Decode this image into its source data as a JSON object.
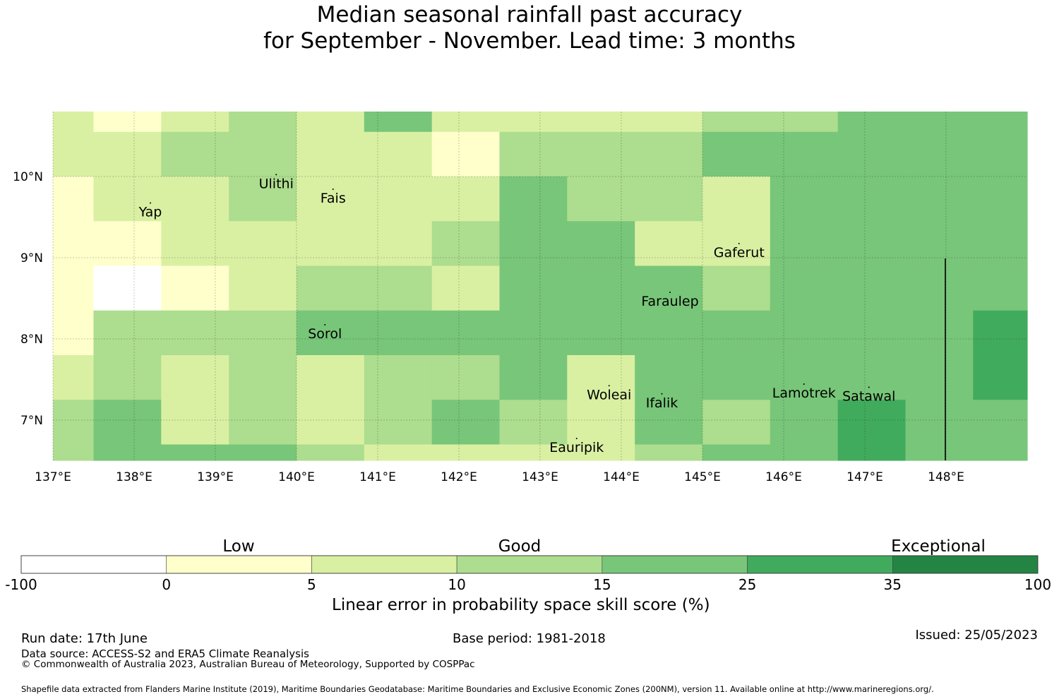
{
  "title": {
    "line1": "Median seasonal rainfall past accuracy",
    "line2": "for September - November. Lead time: 3 months"
  },
  "map": {
    "lon_ticks": [
      "137°E",
      "138°E",
      "139°E",
      "140°E",
      "141°E",
      "142°E",
      "143°E",
      "144°E",
      "145°E",
      "146°E",
      "147°E",
      "148°E"
    ],
    "lat_ticks": [
      "10°N",
      "9°N",
      "8°N",
      "7°N"
    ],
    "lon_range": [
      137,
      149
    ],
    "lat_range": [
      6.5,
      10.8
    ],
    "places": [
      {
        "name": "Yap",
        "lon": 138.2,
        "lat": 9.5
      },
      {
        "name": "Ulithi",
        "lon": 139.75,
        "lat": 9.85
      },
      {
        "name": "Fais",
        "lon": 140.45,
        "lat": 9.67
      },
      {
        "name": "Gaferut",
        "lon": 145.45,
        "lat": 9.0
      },
      {
        "name": "Faraulep",
        "lon": 144.6,
        "lat": 8.4
      },
      {
        "name": "Sorol",
        "lon": 140.35,
        "lat": 8.0
      },
      {
        "name": "Woleai",
        "lon": 143.85,
        "lat": 7.25
      },
      {
        "name": "Ifalik",
        "lon": 144.5,
        "lat": 7.15
      },
      {
        "name": "Lamotrek",
        "lon": 146.25,
        "lat": 7.27
      },
      {
        "name": "Satawal",
        "lon": 147.05,
        "lat": 7.23
      },
      {
        "name": "Eauripik",
        "lon": 143.45,
        "lat": 6.6
      }
    ]
  },
  "legend": {
    "category_labels": [
      "Low",
      "Good",
      "Exceptional"
    ],
    "boundaries": [
      "-100",
      "0",
      "5",
      "10",
      "15",
      "25",
      "35",
      "100"
    ],
    "colors": [
      "#ffffff",
      "#ffffcc",
      "#d9f0a3",
      "#addd8e",
      "#78c679",
      "#41ab5d",
      "#238443"
    ],
    "axis_label": "Linear error in probability space skill score (%)"
  },
  "footer": {
    "run_date": "Run date: 17th June",
    "base_period": "Base period: 1981-2018",
    "issued": "Issued: 25/05/2023",
    "data_source": "Data source: ACCESS-S2 and ERA5 Climate Reanalysis",
    "copyright": "© Commonwealth of Australia 2023, Australian Bureau of Meteorology, Supported by COSPPac",
    "shapefile": "Shapefile data extracted from Flanders Marine Institute (2019), Maritime Boundaries Geodatabase: Maritime Boundaries and Exclusive Economic Zones (200NM), version 11. Available online at http://www.marineregions.org/."
  },
  "chart_data": {
    "type": "heatmap",
    "title": "Median seasonal rainfall past accuracy for September - November. Lead time: 3 months",
    "xlabel": "",
    "ylabel": "",
    "colorbar_label": "Linear error in probability space skill score (%)",
    "class_index_legend": [
      "-100 to 0",
      "0 to 5",
      "5 to 10",
      "10 to 15",
      "15 to 25",
      "25 to 35",
      "35 to 100"
    ],
    "lon_edges": [
      137.0,
      137.5,
      138.333,
      139.167,
      140.0,
      140.833,
      141.667,
      142.5,
      143.333,
      144.167,
      145.0,
      145.833,
      146.667,
      147.5,
      148.333,
      149.0
    ],
    "lat_edges": [
      10.8,
      10.55,
      10.0,
      9.45,
      8.9,
      8.35,
      7.8,
      7.25,
      6.7,
      6.5
    ],
    "class_grid": [
      [
        2,
        1,
        2,
        3,
        2,
        4,
        2,
        2,
        2,
        2,
        3,
        3,
        4,
        4,
        4
      ],
      [
        2,
        2,
        3,
        3,
        2,
        2,
        1,
        3,
        3,
        3,
        4,
        4,
        4,
        4,
        4
      ],
      [
        1,
        2,
        2,
        3,
        2,
        2,
        2,
        4,
        3,
        3,
        2,
        4,
        4,
        4,
        4
      ],
      [
        1,
        1,
        2,
        2,
        2,
        2,
        3,
        4,
        4,
        2,
        2,
        4,
        4,
        4,
        4
      ],
      [
        1,
        0,
        1,
        2,
        3,
        3,
        2,
        4,
        4,
        4,
        3,
        4,
        4,
        4,
        4
      ],
      [
        1,
        3,
        3,
        3,
        4,
        4,
        4,
        4,
        4,
        4,
        4,
        4,
        4,
        4,
        5
      ],
      [
        2,
        3,
        2,
        3,
        2,
        3,
        3,
        4,
        2,
        4,
        4,
        4,
        4,
        4,
        5
      ],
      [
        3,
        4,
        2,
        3,
        2,
        3,
        4,
        3,
        2,
        4,
        3,
        4,
        5,
        4,
        4
      ],
      [
        3,
        4,
        4,
        4,
        3,
        2,
        2,
        2,
        2,
        3,
        4,
        4,
        5,
        4,
        4
      ]
    ]
  }
}
